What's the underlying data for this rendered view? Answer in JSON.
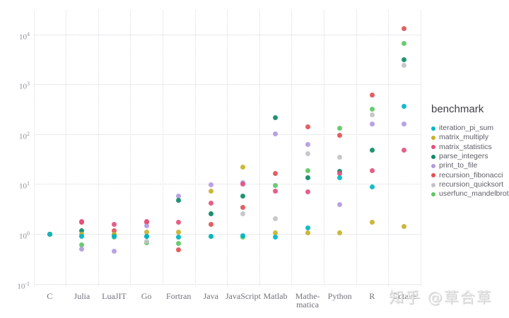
{
  "watermark": {
    "text": "知乎 @草合草"
  },
  "chart_data": {
    "type": "scatter",
    "title": "",
    "legend_title": "benchmark",
    "legend_position": "right",
    "grid": "dotted",
    "y_scale": "log10",
    "ylabel": "",
    "xlabel": "",
    "ylim": [
      0.1,
      20000
    ],
    "y_tick_exponents": [
      -1,
      0,
      1,
      2,
      3,
      4
    ],
    "categories": [
      "C",
      "Julia",
      "LuaJIT",
      "Go",
      "Fortran",
      "Java",
      "JavaScript",
      "Matlab",
      "Mathematica",
      "Python",
      "R",
      "Octave"
    ],
    "x_tick_display": [
      "C",
      "Julia",
      "LuaJIT",
      "Go",
      "Fortran",
      "Java",
      "JavaScript",
      "Matlab",
      "Mathe-\nmatica",
      "Python",
      "R",
      "Octave"
    ],
    "series": [
      {
        "name": "iteration_pi_sum",
        "color": "#00b6c8",
        "values": [
          1.0,
          0.9,
          0.9,
          0.88,
          0.87,
          0.9,
          0.92,
          0.87,
          1.3,
          13.5,
          8.7,
          360
        ]
      },
      {
        "name": "matrix_multiply",
        "color": "#c9b129",
        "values": [
          1.0,
          1.0,
          1.0,
          1.1,
          1.1,
          7.1,
          22,
          1.05,
          1.05,
          1.05,
          1.7,
          1.4
        ]
      },
      {
        "name": "matrix_statistics",
        "color": "#e4517e",
        "values": [
          1.0,
          1.75,
          1.55,
          1.75,
          1.7,
          4.1,
          10,
          7.1,
          6.9,
          16,
          18.5,
          48
        ]
      },
      {
        "name": "parse_integers",
        "color": "#0e8a66",
        "values": [
          1.0,
          1.15,
          0.95,
          0.9,
          4.7,
          2.55,
          5.7,
          215,
          13.5,
          18,
          47,
          3100
        ]
      },
      {
        "name": "print_to_file",
        "color": "#b29ae2",
        "values": [
          1.0,
          0.5,
          0.45,
          1.45,
          5.8,
          9.5,
          10.5,
          100,
          62,
          3.9,
          160,
          160
        ]
      },
      {
        "name": "recursion_fibonacci",
        "color": "#e25252",
        "values": [
          1.0,
          1.7,
          1.15,
          1.7,
          0.48,
          1.55,
          3.4,
          16.5,
          140,
          95,
          600,
          13000
        ]
      },
      {
        "name": "recursion_quicksort",
        "color": "#c2c2c8",
        "values": [
          1.0,
          0.95,
          0.9,
          0.7,
          0.85,
          2.5,
          2.5,
          2.0,
          41,
          34,
          245,
          2400
        ]
      },
      {
        "name": "userfunc_mandelbrot",
        "color": "#5dc863",
        "values": [
          1.0,
          0.6,
          0.85,
          0.67,
          0.64,
          0.9,
          0.85,
          9.2,
          18.5,
          130,
          320,
          6500
        ]
      }
    ]
  }
}
